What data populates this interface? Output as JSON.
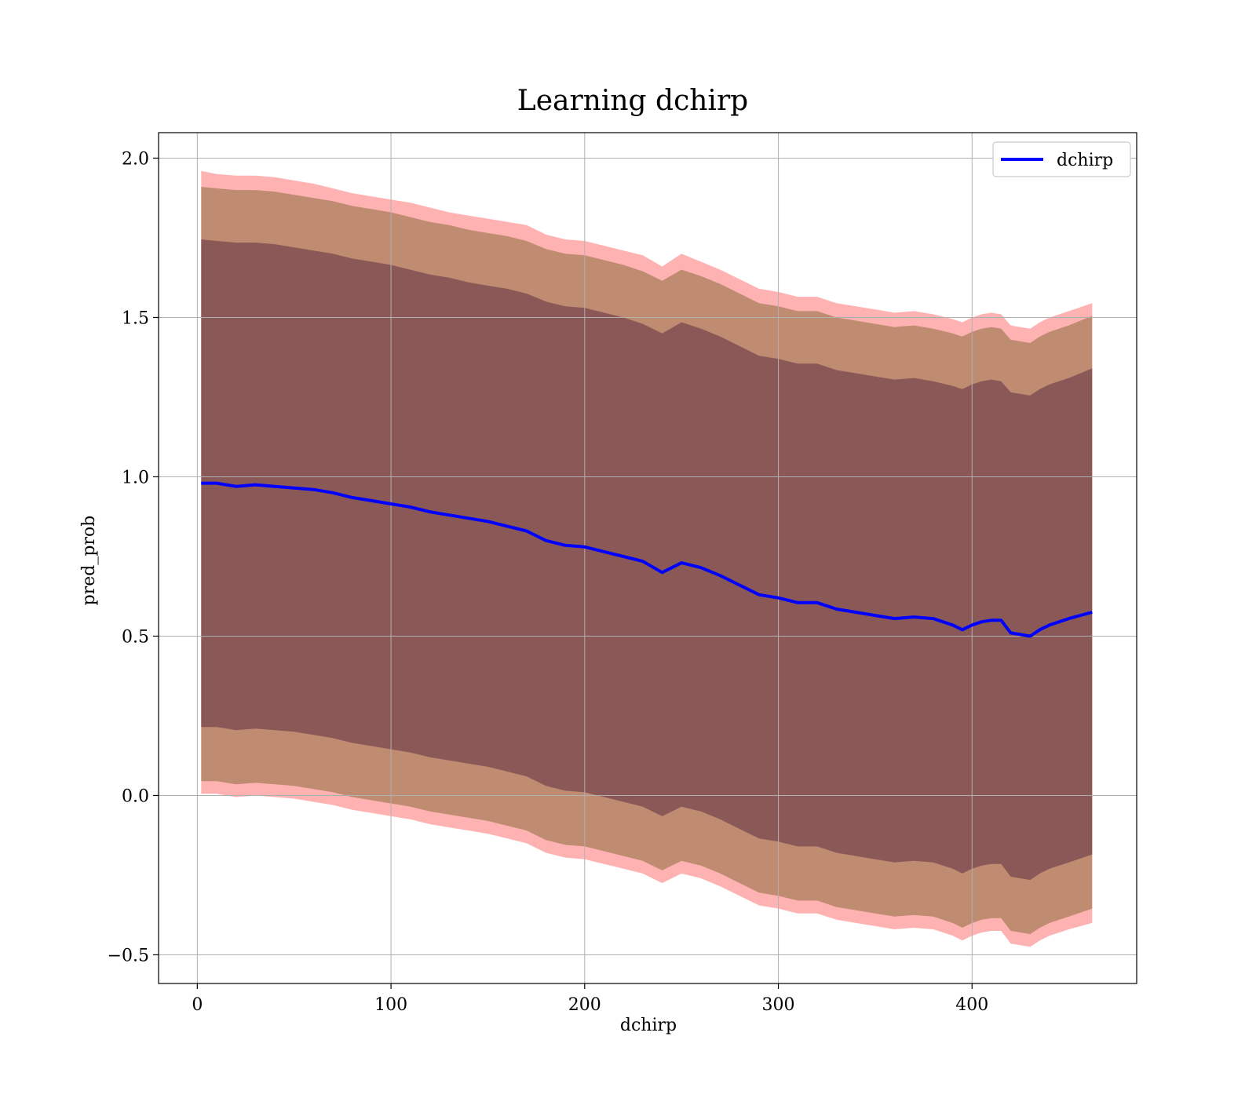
{
  "chart_data": {
    "type": "line",
    "title": "Learning dchirp",
    "xlabel": "dchirp",
    "ylabel": "pred_prob",
    "xlim": [
      -20,
      485
    ],
    "ylim": [
      -0.59,
      2.08
    ],
    "xticks": [
      0,
      100,
      200,
      300,
      400
    ],
    "yticks": [
      -0.5,
      0.0,
      0.5,
      1.0,
      1.5,
      2.0
    ],
    "xtick_labels": [
      "0",
      "100",
      "200",
      "300",
      "400"
    ],
    "ytick_labels": [
      "−0.5",
      "0.0",
      "0.5",
      "1.0",
      "1.5",
      "2.0"
    ],
    "grid": true,
    "legend_position": "top-right",
    "colors": {
      "line": "#0000ff",
      "outer_band": "#ff0000",
      "middle_band": "#8b6b3c",
      "inner_band": "#4b1a3a",
      "grid": "#b0b0b0"
    },
    "series": [
      {
        "name": "dchirp",
        "x": [
          2,
          10,
          20,
          30,
          40,
          50,
          60,
          70,
          80,
          90,
          100,
          110,
          120,
          130,
          140,
          150,
          160,
          170,
          180,
          190,
          200,
          210,
          220,
          230,
          240,
          250,
          260,
          270,
          280,
          290,
          300,
          310,
          320,
          330,
          340,
          350,
          360,
          370,
          380,
          390,
          395,
          400,
          405,
          410,
          415,
          420,
          425,
          430,
          435,
          440,
          450,
          462
        ],
        "y": [
          0.98,
          0.98,
          0.97,
          0.975,
          0.97,
          0.965,
          0.96,
          0.95,
          0.935,
          0.925,
          0.915,
          0.905,
          0.89,
          0.88,
          0.87,
          0.86,
          0.845,
          0.83,
          0.8,
          0.785,
          0.78,
          0.765,
          0.75,
          0.735,
          0.7,
          0.73,
          0.715,
          0.69,
          0.66,
          0.63,
          0.62,
          0.605,
          0.605,
          0.585,
          0.575,
          0.565,
          0.555,
          0.56,
          0.555,
          0.535,
          0.52,
          0.535,
          0.545,
          0.55,
          0.55,
          0.51,
          0.505,
          0.5,
          0.52,
          0.535,
          0.555,
          0.575
        ]
      }
    ],
    "bands": [
      {
        "name": "outer",
        "upper": [
          1.96,
          1.95,
          1.945,
          1.945,
          1.94,
          1.93,
          1.92,
          1.905,
          1.89,
          1.88,
          1.87,
          1.86,
          1.845,
          1.83,
          1.82,
          1.81,
          1.8,
          1.79,
          1.76,
          1.745,
          1.74,
          1.725,
          1.71,
          1.695,
          1.66,
          1.7,
          1.675,
          1.65,
          1.62,
          1.59,
          1.58,
          1.565,
          1.565,
          1.545,
          1.535,
          1.525,
          1.515,
          1.52,
          1.51,
          1.495,
          1.485,
          1.5,
          1.51,
          1.515,
          1.51,
          1.475,
          1.47,
          1.465,
          1.485,
          1.5,
          1.52,
          1.545
        ],
        "lower": [
          0.005,
          0.005,
          -0.005,
          0.0,
          -0.005,
          -0.01,
          -0.02,
          -0.03,
          -0.045,
          -0.055,
          -0.065,
          -0.075,
          -0.09,
          -0.1,
          -0.11,
          -0.12,
          -0.135,
          -0.15,
          -0.18,
          -0.195,
          -0.2,
          -0.215,
          -0.23,
          -0.245,
          -0.275,
          -0.245,
          -0.26,
          -0.285,
          -0.315,
          -0.345,
          -0.355,
          -0.37,
          -0.37,
          -0.39,
          -0.4,
          -0.41,
          -0.42,
          -0.415,
          -0.42,
          -0.44,
          -0.455,
          -0.44,
          -0.43,
          -0.425,
          -0.425,
          -0.465,
          -0.47,
          -0.475,
          -0.455,
          -0.44,
          -0.42,
          -0.4
        ]
      },
      {
        "name": "middle",
        "upper": [
          1.91,
          1.905,
          1.9,
          1.9,
          1.895,
          1.885,
          1.875,
          1.865,
          1.85,
          1.84,
          1.83,
          1.815,
          1.8,
          1.79,
          1.775,
          1.765,
          1.755,
          1.74,
          1.715,
          1.7,
          1.695,
          1.68,
          1.665,
          1.645,
          1.615,
          1.65,
          1.63,
          1.605,
          1.575,
          1.545,
          1.535,
          1.52,
          1.52,
          1.5,
          1.49,
          1.48,
          1.47,
          1.475,
          1.465,
          1.45,
          1.44,
          1.455,
          1.465,
          1.47,
          1.465,
          1.43,
          1.425,
          1.42,
          1.44,
          1.455,
          1.475,
          1.505
        ],
        "lower": [
          0.045,
          0.045,
          0.035,
          0.04,
          0.035,
          0.03,
          0.02,
          0.01,
          -0.005,
          -0.015,
          -0.025,
          -0.035,
          -0.05,
          -0.06,
          -0.07,
          -0.08,
          -0.095,
          -0.11,
          -0.14,
          -0.155,
          -0.16,
          -0.175,
          -0.19,
          -0.205,
          -0.235,
          -0.205,
          -0.22,
          -0.245,
          -0.275,
          -0.305,
          -0.315,
          -0.33,
          -0.33,
          -0.35,
          -0.36,
          -0.37,
          -0.38,
          -0.375,
          -0.38,
          -0.4,
          -0.415,
          -0.4,
          -0.39,
          -0.385,
          -0.385,
          -0.425,
          -0.43,
          -0.435,
          -0.415,
          -0.4,
          -0.38,
          -0.355
        ]
      },
      {
        "name": "inner",
        "upper": [
          1.745,
          1.74,
          1.735,
          1.735,
          1.73,
          1.72,
          1.71,
          1.7,
          1.685,
          1.675,
          1.665,
          1.65,
          1.635,
          1.625,
          1.61,
          1.6,
          1.59,
          1.575,
          1.55,
          1.535,
          1.53,
          1.515,
          1.5,
          1.48,
          1.45,
          1.485,
          1.465,
          1.44,
          1.41,
          1.38,
          1.37,
          1.355,
          1.355,
          1.335,
          1.325,
          1.315,
          1.305,
          1.31,
          1.3,
          1.285,
          1.275,
          1.29,
          1.3,
          1.305,
          1.3,
          1.265,
          1.26,
          1.255,
          1.275,
          1.29,
          1.31,
          1.34
        ],
        "lower": [
          0.215,
          0.215,
          0.205,
          0.21,
          0.205,
          0.2,
          0.19,
          0.18,
          0.165,
          0.155,
          0.145,
          0.135,
          0.12,
          0.11,
          0.1,
          0.09,
          0.075,
          0.06,
          0.03,
          0.015,
          0.01,
          -0.005,
          -0.02,
          -0.035,
          -0.065,
          -0.035,
          -0.05,
          -0.075,
          -0.105,
          -0.135,
          -0.145,
          -0.16,
          -0.16,
          -0.18,
          -0.19,
          -0.2,
          -0.21,
          -0.205,
          -0.21,
          -0.23,
          -0.245,
          -0.23,
          -0.22,
          -0.215,
          -0.215,
          -0.255,
          -0.26,
          -0.265,
          -0.245,
          -0.23,
          -0.21,
          -0.185
        ]
      }
    ]
  }
}
